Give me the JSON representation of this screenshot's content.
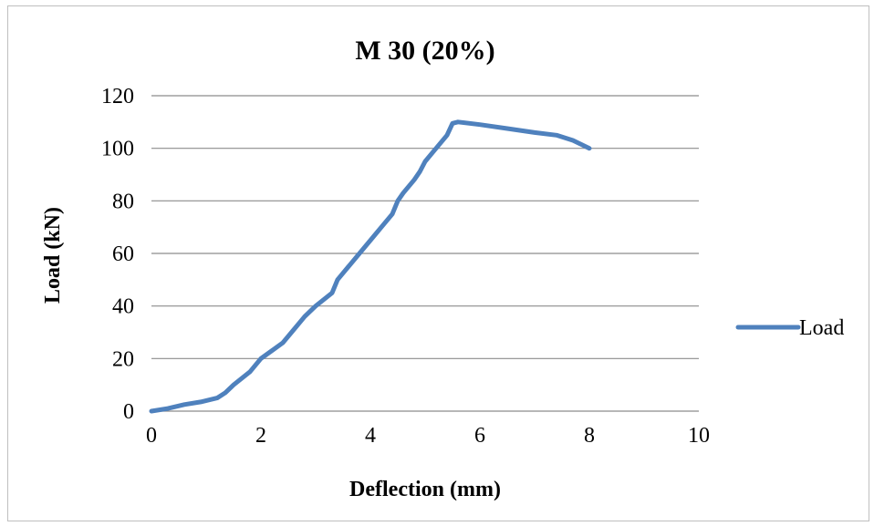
{
  "chart_data": {
    "type": "line",
    "title": "M 30  (20%)",
    "xlabel": "Deflection (mm)",
    "ylabel": "Load  (kN)",
    "xlim": [
      0,
      10
    ],
    "ylim": [
      0,
      120
    ],
    "x_ticks": [
      0,
      2,
      4,
      6,
      8,
      10
    ],
    "y_ticks": [
      0,
      20,
      40,
      60,
      80,
      100,
      120
    ],
    "x_tick_labels": [
      "0",
      "2",
      "4",
      "6",
      "8",
      "10"
    ],
    "y_tick_labels": [
      "0",
      "20",
      "40",
      "60",
      "80",
      "100",
      "120"
    ],
    "grid": "horizontal",
    "legend": "right",
    "series": [
      {
        "name": "Load",
        "color": "#4F81BD",
        "x": [
          0,
          0.3,
          0.6,
          0.9,
          1.2,
          1.35,
          1.5,
          1.8,
          2.0,
          2.2,
          2.4,
          2.6,
          2.8,
          3.0,
          3.3,
          3.4,
          3.6,
          3.8,
          4.0,
          4.2,
          4.4,
          4.5,
          4.6,
          4.8,
          4.9,
          5.0,
          5.2,
          5.4,
          5.5,
          5.6,
          6.0,
          6.5,
          7.0,
          7.4,
          7.7,
          8.0
        ],
        "values": [
          0,
          1,
          2.5,
          3.5,
          5,
          7,
          10,
          15,
          20,
          23,
          26,
          31,
          36,
          40,
          45,
          50,
          55,
          60,
          65,
          70,
          75,
          80,
          83,
          88,
          91,
          95,
          100,
          105,
          109.5,
          110,
          109,
          107.5,
          106,
          105,
          103,
          100
        ]
      }
    ]
  }
}
